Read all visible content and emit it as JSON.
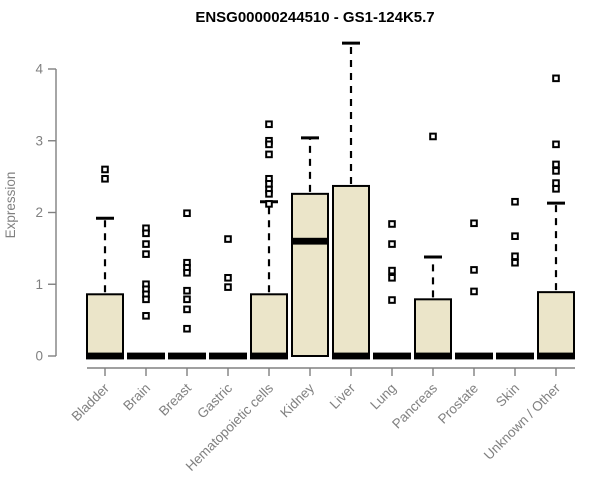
{
  "title": "ENSG00000244510 - GS1-124K5.7",
  "colors": {
    "background": "#ffffff",
    "box_fill": "#EBE5C9",
    "box_stroke": "#000000",
    "median": "#000000",
    "whisker": "#000000",
    "outlier_stroke": "#000000",
    "outlier_fill": "#ffffff",
    "axis": "#808080",
    "tick_text": "#808080",
    "title_text": "#000000"
  },
  "chart_data": {
    "type": "boxplot",
    "title": "ENSG00000244510 - GS1-124K5.7",
    "xlabel": "",
    "ylabel": "Expression",
    "ylim": [
      0,
      4.4
    ],
    "yticks": [
      0,
      1,
      2,
      3,
      4
    ],
    "grid": false,
    "legend": "none",
    "categories": [
      "Bladder",
      "Brain",
      "Breast",
      "Gastric",
      "Hematopoietic cells",
      "Kidney",
      "Liver",
      "Lung",
      "Pancreas",
      "Prostate",
      "Skin",
      "Unknown / Other"
    ],
    "series": [
      {
        "category": "Bladder",
        "q1": 0,
        "median": 0,
        "q3": 0.86,
        "whisker_low": 0,
        "whisker_high": 1.92,
        "outliers": [
          2.6,
          2.47
        ]
      },
      {
        "category": "Brain",
        "q1": 0,
        "median": 0,
        "q3": 0,
        "whisker_low": 0,
        "whisker_high": 0,
        "outliers": [
          1.78,
          1.71,
          1.56,
          1.42,
          1.0,
          0.93,
          0.86,
          0.79,
          0.56
        ]
      },
      {
        "category": "Breast",
        "q1": 0,
        "median": 0,
        "q3": 0,
        "whisker_low": 0,
        "whisker_high": 0,
        "outliers": [
          1.99,
          1.3,
          1.23,
          1.16,
          0.91,
          0.79,
          0.65,
          0.38
        ]
      },
      {
        "category": "Gastric",
        "q1": 0,
        "median": 0,
        "q3": 0,
        "whisker_low": 0,
        "whisker_high": 0,
        "outliers": [
          1.63,
          1.09,
          0.96
        ]
      },
      {
        "category": "Hematopoietic cells",
        "q1": 0,
        "median": 0,
        "q3": 0.86,
        "whisker_low": 0,
        "whisker_high": 2.15,
        "outliers": [
          3.23,
          3.0,
          2.95,
          2.81,
          2.47,
          2.4,
          2.32,
          2.26,
          2.12
        ]
      },
      {
        "category": "Kidney",
        "q1": 0,
        "median": 1.6,
        "q3": 2.26,
        "whisker_low": 0,
        "whisker_high": 3.04,
        "outliers": []
      },
      {
        "category": "Liver",
        "q1": 0,
        "median": 0,
        "q3": 2.37,
        "whisker_low": 0,
        "whisker_high": 4.36,
        "outliers": []
      },
      {
        "category": "Lung",
        "q1": 0,
        "median": 0,
        "q3": 0,
        "whisker_low": 0,
        "whisker_high": 0,
        "outliers": [
          1.84,
          1.56,
          1.19,
          1.09,
          0.78
        ]
      },
      {
        "category": "Pancreas",
        "q1": 0,
        "median": 0,
        "q3": 0.79,
        "whisker_low": 0,
        "whisker_high": 1.38,
        "outliers": [
          3.06
        ]
      },
      {
        "category": "Prostate",
        "q1": 0,
        "median": 0,
        "q3": 0,
        "whisker_low": 0,
        "whisker_high": 0,
        "outliers": [
          1.85,
          1.2,
          0.9
        ]
      },
      {
        "category": "Skin",
        "q1": 0,
        "median": 0,
        "q3": 0,
        "whisker_low": 0,
        "whisker_high": 0,
        "outliers": [
          2.15,
          1.67,
          1.39,
          1.3
        ]
      },
      {
        "category": "Unknown / Other",
        "q1": 0,
        "median": 0,
        "q3": 0.89,
        "whisker_low": 0,
        "whisker_high": 2.13,
        "outliers": [
          3.87,
          2.95,
          2.67,
          2.58,
          2.41,
          2.33
        ]
      }
    ]
  }
}
